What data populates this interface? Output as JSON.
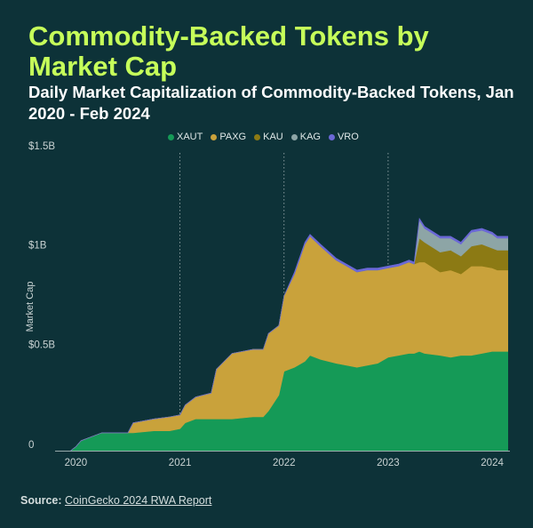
{
  "title": "Commodity-Backed Tokens by Market Cap",
  "subtitle": "Daily Market Capitalization of Commodity-Backed Tokens, Jan 2020 - Feb 2024",
  "footer": {
    "source_label": "Source:",
    "source_link": "CoinGecko 2024 RWA Report"
  },
  "colors": {
    "background": "#0d3238",
    "title": "#c6ff5a",
    "XAUT": "#159a57",
    "PAXG": "#c9a23b",
    "KAU": "#8c7a14",
    "KAG": "#8da5a6",
    "VRO": "#6b68d6"
  },
  "chart_data": {
    "type": "area",
    "stacked": true,
    "title": "Commodity-Backed Tokens by Market Cap",
    "subtitle": "Daily Market Capitalization of Commodity-Backed Tokens, Jan 2020 - Feb 2024",
    "xlabel": "",
    "ylabel": "Market Cap",
    "xlim": [
      "2019-10",
      "2024-02"
    ],
    "ylim": [
      0,
      1.5
    ],
    "y_unit": "B",
    "y_ticks": [
      {
        "value": 0,
        "label": "0"
      },
      {
        "value": 0.5,
        "label": "$0.5B"
      },
      {
        "value": 1,
        "label": "$1B"
      },
      {
        "value": 1.5,
        "label": "$1.5B"
      }
    ],
    "x_ticks": [
      "2020",
      "2021",
      "2022",
      "2023",
      "2024"
    ],
    "x_tick_values": [
      2020.0,
      2021.0,
      2022.0,
      2023.0,
      2024.0
    ],
    "grid": "vertical dotted lines at 2021, 2022, 2023",
    "legend": {
      "position": "top",
      "entries": [
        "XAUT",
        "PAXG",
        "KAU",
        "KAG",
        "VRO"
      ]
    },
    "x": [
      2019.95,
      2020.0,
      2020.05,
      2020.25,
      2020.5,
      2020.55,
      2020.75,
      2020.9,
      2021.0,
      2021.05,
      2021.15,
      2021.3,
      2021.35,
      2021.5,
      2021.7,
      2021.8,
      2021.85,
      2021.95,
      2022.0,
      2022.1,
      2022.2,
      2022.25,
      2022.35,
      2022.5,
      2022.6,
      2022.7,
      2022.8,
      2022.9,
      2023.0,
      2023.1,
      2023.2,
      2023.25,
      2023.3,
      2023.35,
      2023.5,
      2023.6,
      2023.7,
      2023.8,
      2023.9,
      2024.0,
      2024.05,
      2024.15
    ],
    "series": [
      {
        "name": "XAUT",
        "values": [
          0,
          0.02,
          0.05,
          0.09,
          0.09,
          0.09,
          0.1,
          0.1,
          0.11,
          0.14,
          0.16,
          0.16,
          0.16,
          0.16,
          0.17,
          0.17,
          0.2,
          0.28,
          0.4,
          0.42,
          0.45,
          0.48,
          0.46,
          0.44,
          0.43,
          0.42,
          0.43,
          0.44,
          0.47,
          0.48,
          0.49,
          0.49,
          0.5,
          0.49,
          0.48,
          0.47,
          0.48,
          0.48,
          0.49,
          0.5,
          0.5,
          0.5
        ]
      },
      {
        "name": "PAXG",
        "values": [
          0,
          0,
          0,
          0,
          0,
          0.05,
          0.06,
          0.07,
          0.07,
          0.09,
          0.11,
          0.13,
          0.25,
          0.33,
          0.34,
          0.34,
          0.39,
          0.35,
          0.38,
          0.47,
          0.59,
          0.6,
          0.57,
          0.52,
          0.5,
          0.48,
          0.48,
          0.47,
          0.45,
          0.45,
          0.46,
          0.45,
          0.45,
          0.46,
          0.42,
          0.44,
          0.41,
          0.45,
          0.44,
          0.42,
          0.41,
          0.41
        ]
      },
      {
        "name": "KAU",
        "values": [
          0,
          0,
          0,
          0,
          0,
          0,
          0,
          0,
          0,
          0,
          0,
          0,
          0,
          0,
          0,
          0,
          0,
          0,
          0,
          0,
          0,
          0,
          0,
          0,
          0,
          0,
          0,
          0,
          0,
          0,
          0,
          0,
          0.12,
          0.1,
          0.1,
          0.1,
          0.09,
          0.1,
          0.11,
          0.1,
          0.1,
          0.1
        ]
      },
      {
        "name": "KAG",
        "values": [
          0,
          0,
          0,
          0,
          0,
          0,
          0,
          0,
          0,
          0,
          0,
          0,
          0,
          0,
          0,
          0,
          0,
          0,
          0,
          0,
          0,
          0,
          0,
          0,
          0,
          0,
          0,
          0,
          0,
          0,
          0,
          0,
          0.09,
          0.07,
          0.07,
          0.06,
          0.06,
          0.07,
          0.07,
          0.07,
          0.06,
          0.06
        ]
      },
      {
        "name": "VRO",
        "values": [
          0,
          0,
          0,
          0,
          0,
          0,
          0,
          0,
          0,
          0,
          0,
          0,
          0,
          0,
          0,
          0,
          0,
          0,
          0,
          0.01,
          0.01,
          0.01,
          0.01,
          0.01,
          0.01,
          0.01,
          0.01,
          0.01,
          0.01,
          0.01,
          0.01,
          0.01,
          0.01,
          0.01,
          0.01,
          0.01,
          0.01,
          0.01,
          0.01,
          0.01,
          0.01,
          0.01
        ]
      }
    ]
  }
}
